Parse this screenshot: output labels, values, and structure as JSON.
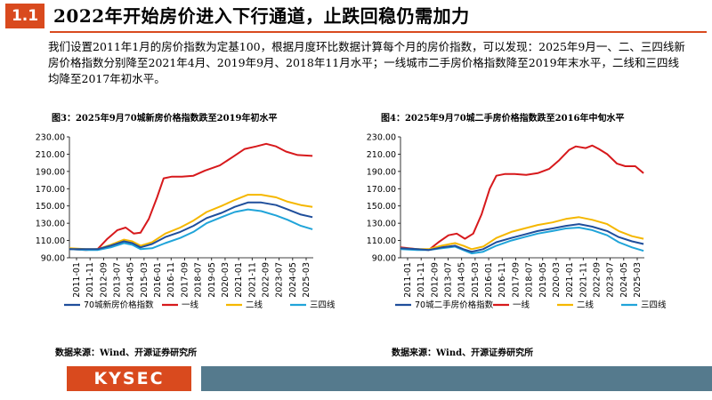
{
  "header": {
    "badge": "1.1",
    "title": "2022年开始房价进入下行通道，止跌回稳仍需加力"
  },
  "intro_text": "我们设置2011年1月的房价指数为定基100，根据月度环比数据计算每个月的房价指数，可以发现：2025年9月一、二、三四线新房价格指数分别降至2021年4月、2019年9月、2018年11月水平；一线城市二手房价格指数降至2019年末水平，二线和三四线均降至2017年初水平。",
  "colors": {
    "accent": "#d94a1e",
    "footer_bar": "#557a8d"
  },
  "footer": {
    "logo": "KYSEC"
  },
  "chart_data": [
    {
      "type": "line",
      "title": "图3：2025年9月70城新房价格指数跌至2019年初水平",
      "source": "数据来源：Wind、开源证券研究所",
      "x_range": [
        2011.0,
        2025.75
      ],
      "ylim": [
        90,
        230
      ],
      "y_ticks": [
        90,
        110,
        130,
        150,
        170,
        190,
        210,
        230
      ],
      "y_tick_labels": [
        "90.00",
        "110.00",
        "130.00",
        "150.00",
        "170.00",
        "190.00",
        "210.00",
        "230.00"
      ],
      "x_tick_labels": [
        "2011-01",
        "2011-11",
        "2012-09",
        "2013-07",
        "2014-05",
        "2015-03",
        "2016-01",
        "2016-11",
        "2017-09",
        "2018-07",
        "2019-05",
        "2020-03",
        "2021-01",
        "2021-11",
        "2022-09",
        "2023-07",
        "2024-05",
        "2025-03"
      ],
      "series": [
        {
          "name": "70城新房价格指数",
          "color": "#1f4e9b",
          "points": [
            [
              2011.0,
              100
            ],
            [
              2012.0,
              100
            ],
            [
              2012.7,
              100
            ],
            [
              2013.5,
              104
            ],
            [
              2014.3,
              109
            ],
            [
              2014.8,
              107
            ],
            [
              2015.3,
              102
            ],
            [
              2016.0,
              106
            ],
            [
              2016.8,
              114
            ],
            [
              2017.7,
              120
            ],
            [
              2018.5,
              127
            ],
            [
              2019.3,
              136
            ],
            [
              2020.2,
              142
            ],
            [
              2021.0,
              149
            ],
            [
              2021.8,
              154
            ],
            [
              2022.6,
              154
            ],
            [
              2023.5,
              151
            ],
            [
              2024.2,
              146
            ],
            [
              2025.0,
              140
            ],
            [
              2025.7,
              137
            ]
          ]
        },
        {
          "name": "一线",
          "color": "#d7191c",
          "points": [
            [
              2011.0,
              100
            ],
            [
              2012.0,
              99
            ],
            [
              2012.7,
              100
            ],
            [
              2013.3,
              112
            ],
            [
              2013.9,
              122
            ],
            [
              2014.4,
              125
            ],
            [
              2014.9,
              118
            ],
            [
              2015.3,
              119
            ],
            [
              2015.8,
              135
            ],
            [
              2016.3,
              160
            ],
            [
              2016.7,
              182
            ],
            [
              2017.2,
              184
            ],
            [
              2017.8,
              184
            ],
            [
              2018.5,
              185
            ],
            [
              2019.2,
              191
            ],
            [
              2020.1,
              197
            ],
            [
              2020.9,
              207
            ],
            [
              2021.6,
              216
            ],
            [
              2022.3,
              219
            ],
            [
              2022.9,
              222
            ],
            [
              2023.5,
              219
            ],
            [
              2024.1,
              213
            ],
            [
              2024.8,
              209
            ],
            [
              2025.7,
              208
            ]
          ]
        },
        {
          "name": "二线",
          "color": "#f5b700",
          "points": [
            [
              2011.0,
              101
            ],
            [
              2012.0,
              100
            ],
            [
              2012.7,
              100
            ],
            [
              2013.5,
              105
            ],
            [
              2014.3,
              111
            ],
            [
              2014.8,
              109
            ],
            [
              2015.3,
              104
            ],
            [
              2016.0,
              108
            ],
            [
              2016.8,
              118
            ],
            [
              2017.7,
              125
            ],
            [
              2018.5,
              133
            ],
            [
              2019.3,
              143
            ],
            [
              2020.2,
              150
            ],
            [
              2021.0,
              157
            ],
            [
              2021.8,
              163
            ],
            [
              2022.6,
              163
            ],
            [
              2023.5,
              160
            ],
            [
              2024.2,
              155
            ],
            [
              2025.0,
              151
            ],
            [
              2025.7,
              149
            ]
          ]
        },
        {
          "name": "三四线",
          "color": "#20a4d9",
          "points": [
            [
              2011.0,
              100
            ],
            [
              2012.0,
              99
            ],
            [
              2012.7,
              99
            ],
            [
              2013.5,
              102
            ],
            [
              2014.3,
              107
            ],
            [
              2014.8,
              105
            ],
            [
              2015.3,
              100
            ],
            [
              2016.0,
              101
            ],
            [
              2016.8,
              107
            ],
            [
              2017.7,
              113
            ],
            [
              2018.5,
              120
            ],
            [
              2019.3,
              130
            ],
            [
              2020.2,
              137
            ],
            [
              2021.0,
              143
            ],
            [
              2021.8,
              146
            ],
            [
              2022.6,
              144
            ],
            [
              2023.5,
              139
            ],
            [
              2024.2,
              134
            ],
            [
              2025.0,
              127
            ],
            [
              2025.7,
              123
            ]
          ]
        }
      ]
    },
    {
      "type": "line",
      "title": "图4：2025年9月70城二手房价格指数跌至2016年中旬水平",
      "source": "数据来源：Wind、开源证券研究所",
      "x_range": [
        2011.0,
        2025.75
      ],
      "ylim": [
        90,
        230
      ],
      "y_ticks": [
        90,
        110,
        130,
        150,
        170,
        190,
        210,
        230
      ],
      "y_tick_labels": [
        "90.00",
        "110.00",
        "130.00",
        "150.00",
        "170.00",
        "190.00",
        "210.00",
        "230.00"
      ],
      "x_tick_labels": [
        "2011-01",
        "2011-11",
        "2012-09",
        "2013-07",
        "2014-05",
        "2015-03",
        "2016-01",
        "2016-11",
        "2017-09",
        "2018-07",
        "2019-05",
        "2020-03",
        "2021-01",
        "2021-11",
        "2022-09",
        "2023-07",
        "2024-05",
        "2025-03"
      ],
      "series": [
        {
          "name": "70城二手房价格指数",
          "color": "#1f4e9b",
          "points": [
            [
              2011.0,
              101
            ],
            [
              2012.0,
              100
            ],
            [
              2012.7,
              99
            ],
            [
              2013.5,
              102
            ],
            [
              2014.3,
              104
            ],
            [
              2014.8,
              100
            ],
            [
              2015.3,
              97
            ],
            [
              2016.0,
              100
            ],
            [
              2016.8,
              108
            ],
            [
              2017.7,
              113
            ],
            [
              2018.5,
              117
            ],
            [
              2019.3,
              121
            ],
            [
              2020.2,
              124
            ],
            [
              2021.0,
              127
            ],
            [
              2021.8,
              129
            ],
            [
              2022.6,
              126
            ],
            [
              2023.5,
              121
            ],
            [
              2024.2,
              114
            ],
            [
              2025.0,
              109
            ],
            [
              2025.7,
              106
            ]
          ]
        },
        {
          "name": "一线",
          "color": "#d7191c",
          "points": [
            [
              2011.0,
              102
            ],
            [
              2012.0,
              100
            ],
            [
              2012.7,
              99
            ],
            [
              2013.3,
              108
            ],
            [
              2013.9,
              116
            ],
            [
              2014.4,
              118
            ],
            [
              2014.9,
              112
            ],
            [
              2015.4,
              118
            ],
            [
              2015.9,
              140
            ],
            [
              2016.4,
              170
            ],
            [
              2016.8,
              185
            ],
            [
              2017.3,
              187
            ],
            [
              2017.9,
              187
            ],
            [
              2018.6,
              186
            ],
            [
              2019.3,
              188
            ],
            [
              2020.0,
              193
            ],
            [
              2020.6,
              203
            ],
            [
              2021.2,
              215
            ],
            [
              2021.6,
              219
            ],
            [
              2022.2,
              217
            ],
            [
              2022.6,
              220
            ],
            [
              2023.0,
              216
            ],
            [
              2023.5,
              210
            ],
            [
              2024.1,
              199
            ],
            [
              2024.6,
              196
            ],
            [
              2025.2,
              196
            ],
            [
              2025.7,
              188
            ]
          ]
        },
        {
          "name": "二线",
          "color": "#f5b700",
          "points": [
            [
              2011.0,
              101
            ],
            [
              2012.0,
              100
            ],
            [
              2012.7,
              100
            ],
            [
              2013.5,
              104
            ],
            [
              2014.3,
              107
            ],
            [
              2014.8,
              104
            ],
            [
              2015.3,
              100
            ],
            [
              2016.0,
              103
            ],
            [
              2016.8,
              113
            ],
            [
              2017.7,
              120
            ],
            [
              2018.5,
              124
            ],
            [
              2019.3,
              128
            ],
            [
              2020.2,
              131
            ],
            [
              2021.0,
              135
            ],
            [
              2021.8,
              137
            ],
            [
              2022.6,
              134
            ],
            [
              2023.5,
              129
            ],
            [
              2024.2,
              121
            ],
            [
              2025.0,
              115
            ],
            [
              2025.7,
              112
            ]
          ]
        },
        {
          "name": "三四线",
          "color": "#20a4d9",
          "points": [
            [
              2011.0,
              100
            ],
            [
              2012.0,
              99
            ],
            [
              2012.7,
              99
            ],
            [
              2013.5,
              101
            ],
            [
              2014.3,
              103
            ],
            [
              2014.8,
              99
            ],
            [
              2015.3,
              95
            ],
            [
              2016.0,
              97
            ],
            [
              2016.8,
              104
            ],
            [
              2017.7,
              110
            ],
            [
              2018.5,
              114
            ],
            [
              2019.3,
              118
            ],
            [
              2020.2,
              121
            ],
            [
              2021.0,
              124
            ],
            [
              2021.8,
              125
            ],
            [
              2022.6,
              122
            ],
            [
              2023.5,
              116
            ],
            [
              2024.2,
              108
            ],
            [
              2025.0,
              102
            ],
            [
              2025.7,
              98
            ]
          ]
        }
      ]
    }
  ]
}
